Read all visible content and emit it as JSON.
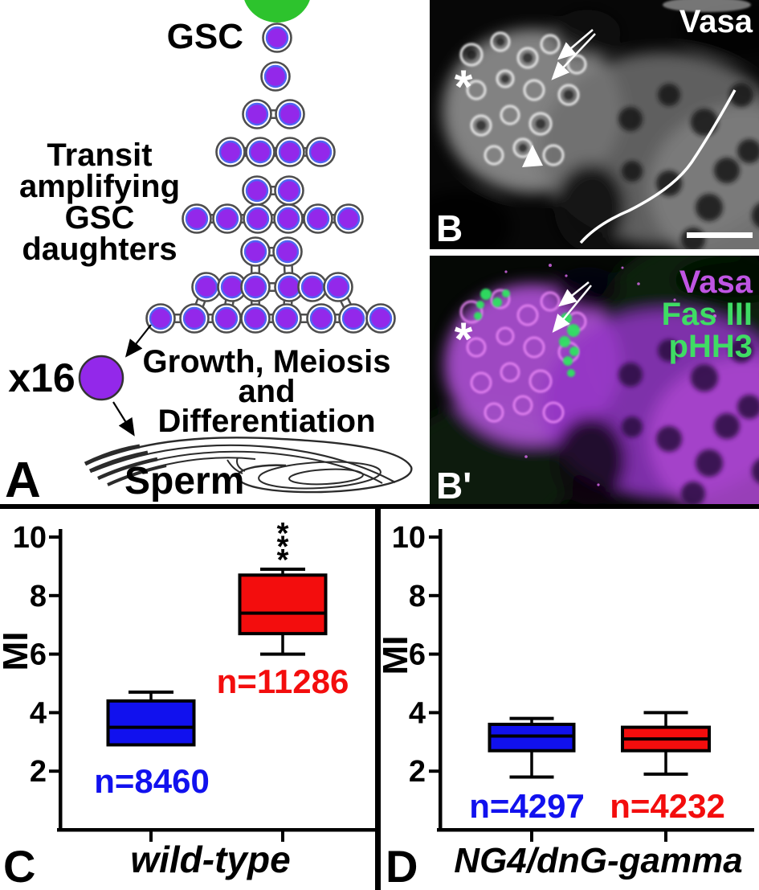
{
  "panel_a": {
    "letter": "A",
    "gsc_label": "GSC",
    "transit_label_lines": [
      "Transit",
      "amplifying",
      "GSC",
      "daughters"
    ],
    "x16_label": "x16",
    "growth_label_lines": [
      "Growth, Meiosis",
      "and",
      "Differentiation"
    ],
    "sperm_label": "Sperm",
    "cells_per_stage": [
      1,
      1,
      2,
      4,
      8,
      16
    ],
    "hub_color": "#2dc32d",
    "cell_fill": "#9328ea",
    "cell_ring_color": "#4f64f2",
    "cell_outline_color": "#4d4d4d"
  },
  "panel_b": {
    "letter": "B",
    "stain_labels": [
      {
        "text": "Vasa",
        "color": "#ffffff"
      }
    ],
    "asterisk_mark": "*",
    "has_double_arrow": true,
    "has_arrowhead": true,
    "has_scale_bar": true
  },
  "panel_b_prime": {
    "letter": "B'",
    "stain_labels": [
      {
        "text": "Vasa",
        "color": "#bf55e3"
      },
      {
        "text": "Fas III",
        "color": "#3fdc64"
      },
      {
        "text": "pHH3",
        "color": "#3fdc64"
      }
    ],
    "asterisk_mark": "*",
    "has_double_arrow": true
  },
  "chart_data": [
    {
      "type": "box",
      "panel_letter": "C",
      "ylabel": "MI",
      "xlabel": "wild-type",
      "ylim": [
        0,
        10
      ],
      "yticks": [
        2,
        4,
        6,
        8,
        10
      ],
      "grid": false,
      "boxes": [
        {
          "label": "n=8460",
          "n": 8460,
          "color": "#1111ee",
          "min": 2.9,
          "q1": 2.9,
          "median": 3.5,
          "q3": 4.4,
          "max": 4.7
        },
        {
          "label": "n=11286",
          "n": 11286,
          "color": "#f30d0d",
          "min": 6.0,
          "q1": 6.7,
          "median": 7.4,
          "q3": 8.7,
          "max": 8.9,
          "significance": "***"
        }
      ]
    },
    {
      "type": "box",
      "panel_letter": "D",
      "ylabel": "MI",
      "xlabel": "NG4/dnG-gamma",
      "ylim": [
        0,
        10
      ],
      "yticks": [
        2,
        4,
        6,
        8,
        10
      ],
      "grid": false,
      "boxes": [
        {
          "label": "n=4297",
          "n": 4297,
          "color": "#1111ee",
          "min": 1.8,
          "q1": 2.7,
          "median": 3.2,
          "q3": 3.6,
          "max": 3.8
        },
        {
          "label": "n=4232",
          "n": 4232,
          "color": "#f30d0d",
          "min": 1.9,
          "q1": 2.7,
          "median": 3.1,
          "q3": 3.5,
          "max": 4.0
        }
      ]
    }
  ]
}
